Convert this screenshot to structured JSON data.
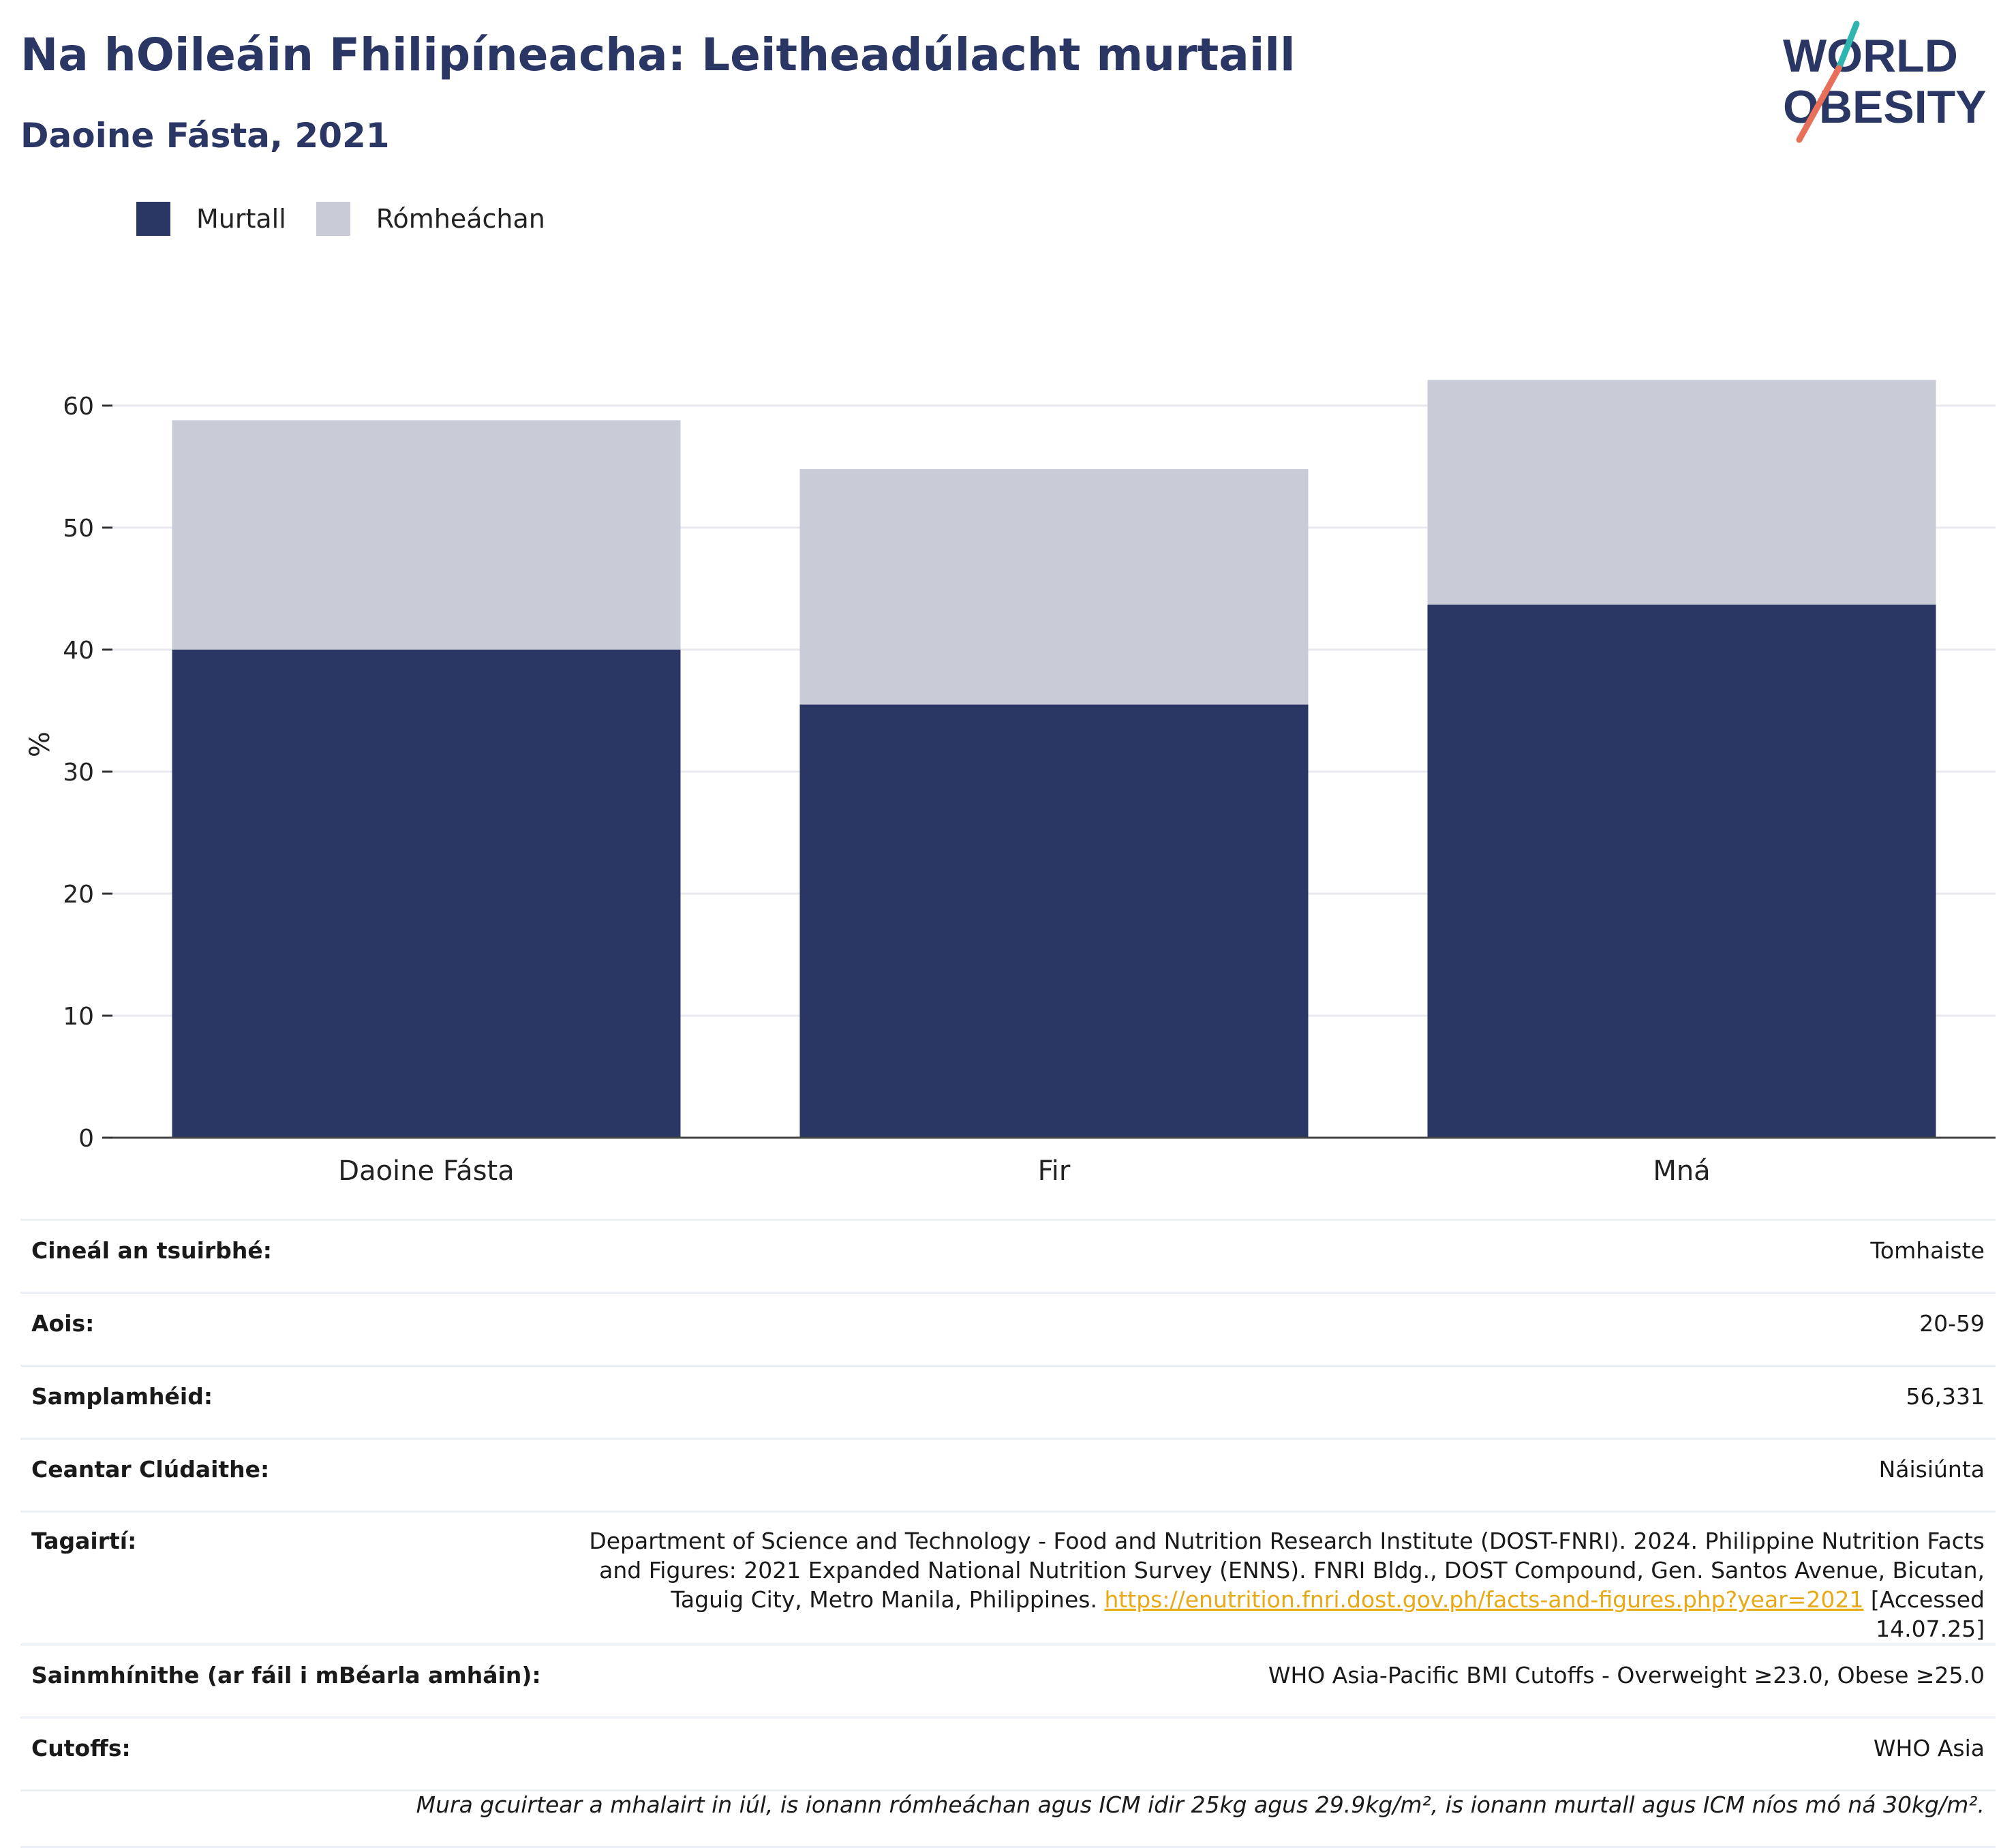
{
  "header": {
    "title": "Na hOileáin Fhilipíneacha: Leitheadúlacht murtaill",
    "subtitle": "Daoine Fásta, 2021"
  },
  "logo": {
    "line1": "WORLD",
    "line2": "OBESITY"
  },
  "legend": [
    {
      "label": "Murtall",
      "color": "#2a3663"
    },
    {
      "label": "Rómheáchan",
      "color": "#c9cbd6"
    }
  ],
  "chart_data": {
    "type": "bar",
    "stacked": true,
    "categories": [
      "Daoine Fásta",
      "Fir",
      "Mná"
    ],
    "series": [
      {
        "name": "Murtall",
        "values": [
          40.0,
          35.5,
          43.7
        ],
        "color": "#2a3663"
      },
      {
        "name": "Rómheáchan",
        "values": [
          18.8,
          19.3,
          18.4
        ],
        "color": "#c9cbd6"
      }
    ],
    "totals": [
      58.8,
      54.8,
      62.1
    ],
    "ylabel": "%",
    "yticks": [
      0,
      10,
      20,
      30,
      40,
      50,
      60
    ],
    "ylim": [
      0,
      65
    ],
    "grid": true,
    "legend_position": "top-left"
  },
  "meta": {
    "survey_type": {
      "label": "Cineál an tsuirbhé:",
      "value": "Tomhaiste"
    },
    "age": {
      "label": "Aois:",
      "value": "20-59"
    },
    "sample": {
      "label": "Samplamhéid:",
      "value": "56,331"
    },
    "area": {
      "label": "Ceantar Clúdaithe:",
      "value": "Náisiúnta"
    },
    "references": {
      "label": "Tagairtí:",
      "text_before": "Department of Science and Technology - Food and Nutrition Research Institute (DOST-FNRI). 2024. Philippine Nutrition Facts and Figures: 2021 Expanded National Nutrition Survey (ENNS). FNRI Bldg., DOST Compound, Gen. Santos Avenue, Bicutan, Taguig City, Metro Manila, Philippines. ",
      "link": "https://enutrition.fnri.dost.gov.ph/facts-and-figures.php?year=2021",
      "text_after": " [Accessed 14.07.25]"
    },
    "definitions": {
      "label": "Sainmhínithe (ar fáil i mBéarla amháin):",
      "value": "WHO Asia-Pacific BMI Cutoffs - Overweight ≥23.0, Obese ≥25.0"
    },
    "cutoffs": {
      "label": "Cutoffs:",
      "value": "WHO Asia"
    },
    "note": "Mura gcuirtear a mhalairt in iúl, is ionann rómheáchan agus ICM idir 25kg agus 29.9kg/m², is ionann murtall agus ICM níos mó ná 30kg/m²."
  }
}
